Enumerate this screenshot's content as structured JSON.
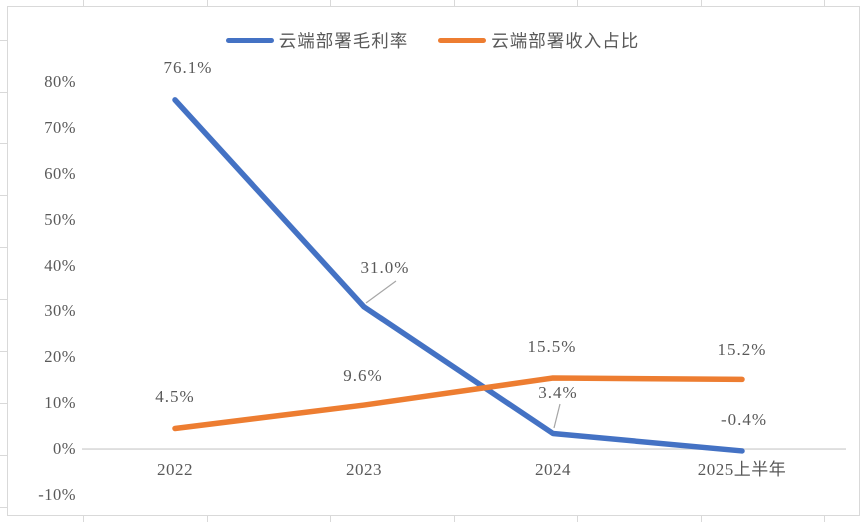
{
  "chart_data": {
    "type": "line",
    "title": "",
    "xlabel": "",
    "ylabel": "",
    "categories": [
      "2022",
      "2023",
      "2024",
      "2025上半年"
    ],
    "series": [
      {
        "name": "云端部署毛利率",
        "color": "#4472C4",
        "values": [
          76.1,
          31.0,
          3.4,
          -0.4
        ],
        "data_labels": [
          "76.1%",
          "31.0%",
          "3.4%",
          "-0.4%"
        ]
      },
      {
        "name": "云端部署收入占比",
        "color": "#ED7D31",
        "values": [
          4.5,
          9.6,
          15.5,
          15.2
        ],
        "data_labels": [
          "4.5%",
          "9.6%",
          "15.5%",
          "15.2%"
        ]
      }
    ],
    "y_axis": {
      "min": -10,
      "max": 80,
      "step": 10,
      "tick_labels": [
        "80%",
        "70%",
        "60%",
        "50%",
        "40%",
        "30%",
        "20%",
        "10%",
        "0%",
        "-10%"
      ]
    },
    "legend_position": "top",
    "grid": false,
    "colors": {
      "axis_line": "#D9D9D9",
      "frame_border": "#D9D9D9",
      "label_text": "#595959",
      "leader_line": "#A6A6A6",
      "background": "#FFFFFF"
    }
  }
}
